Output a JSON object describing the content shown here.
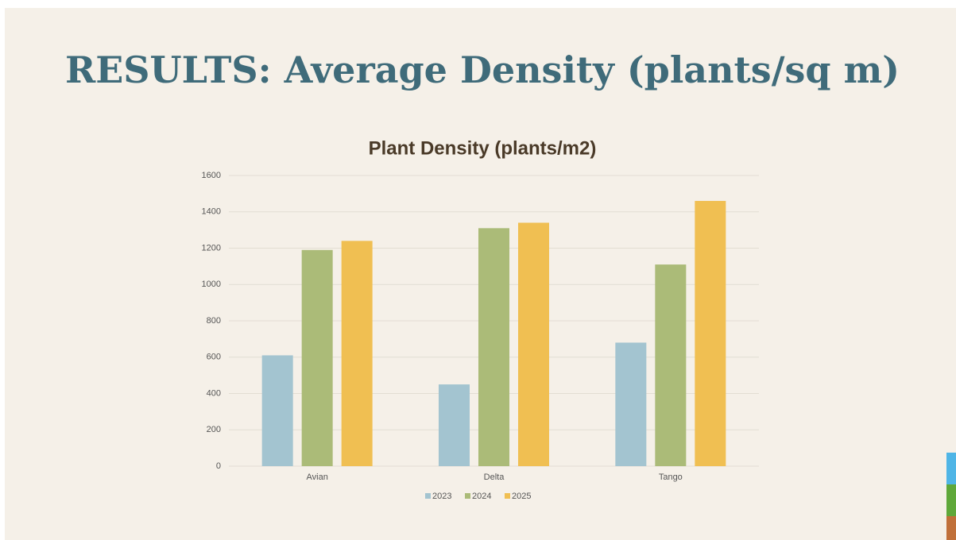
{
  "header": {
    "title": "RESULTS: Average Density (plants/sq m)"
  },
  "chart_data": {
    "type": "bar",
    "title": "Plant Density (plants/m2)",
    "categories": [
      "Avian",
      "Delta",
      "Tango"
    ],
    "series": [
      {
        "name": "2023",
        "color": "#a3c4d0",
        "values": [
          610,
          450,
          680
        ]
      },
      {
        "name": "2024",
        "color": "#abbb78",
        "values": [
          1190,
          1310,
          1110
        ]
      },
      {
        "name": "2025",
        "color": "#f0bf52",
        "values": [
          1240,
          1340,
          1460
        ]
      }
    ],
    "ylim": [
      0,
      1600
    ],
    "yticks": [
      0,
      200,
      400,
      600,
      800,
      1000,
      1200,
      1400,
      1600
    ],
    "grid": true,
    "legend": "bottom"
  }
}
